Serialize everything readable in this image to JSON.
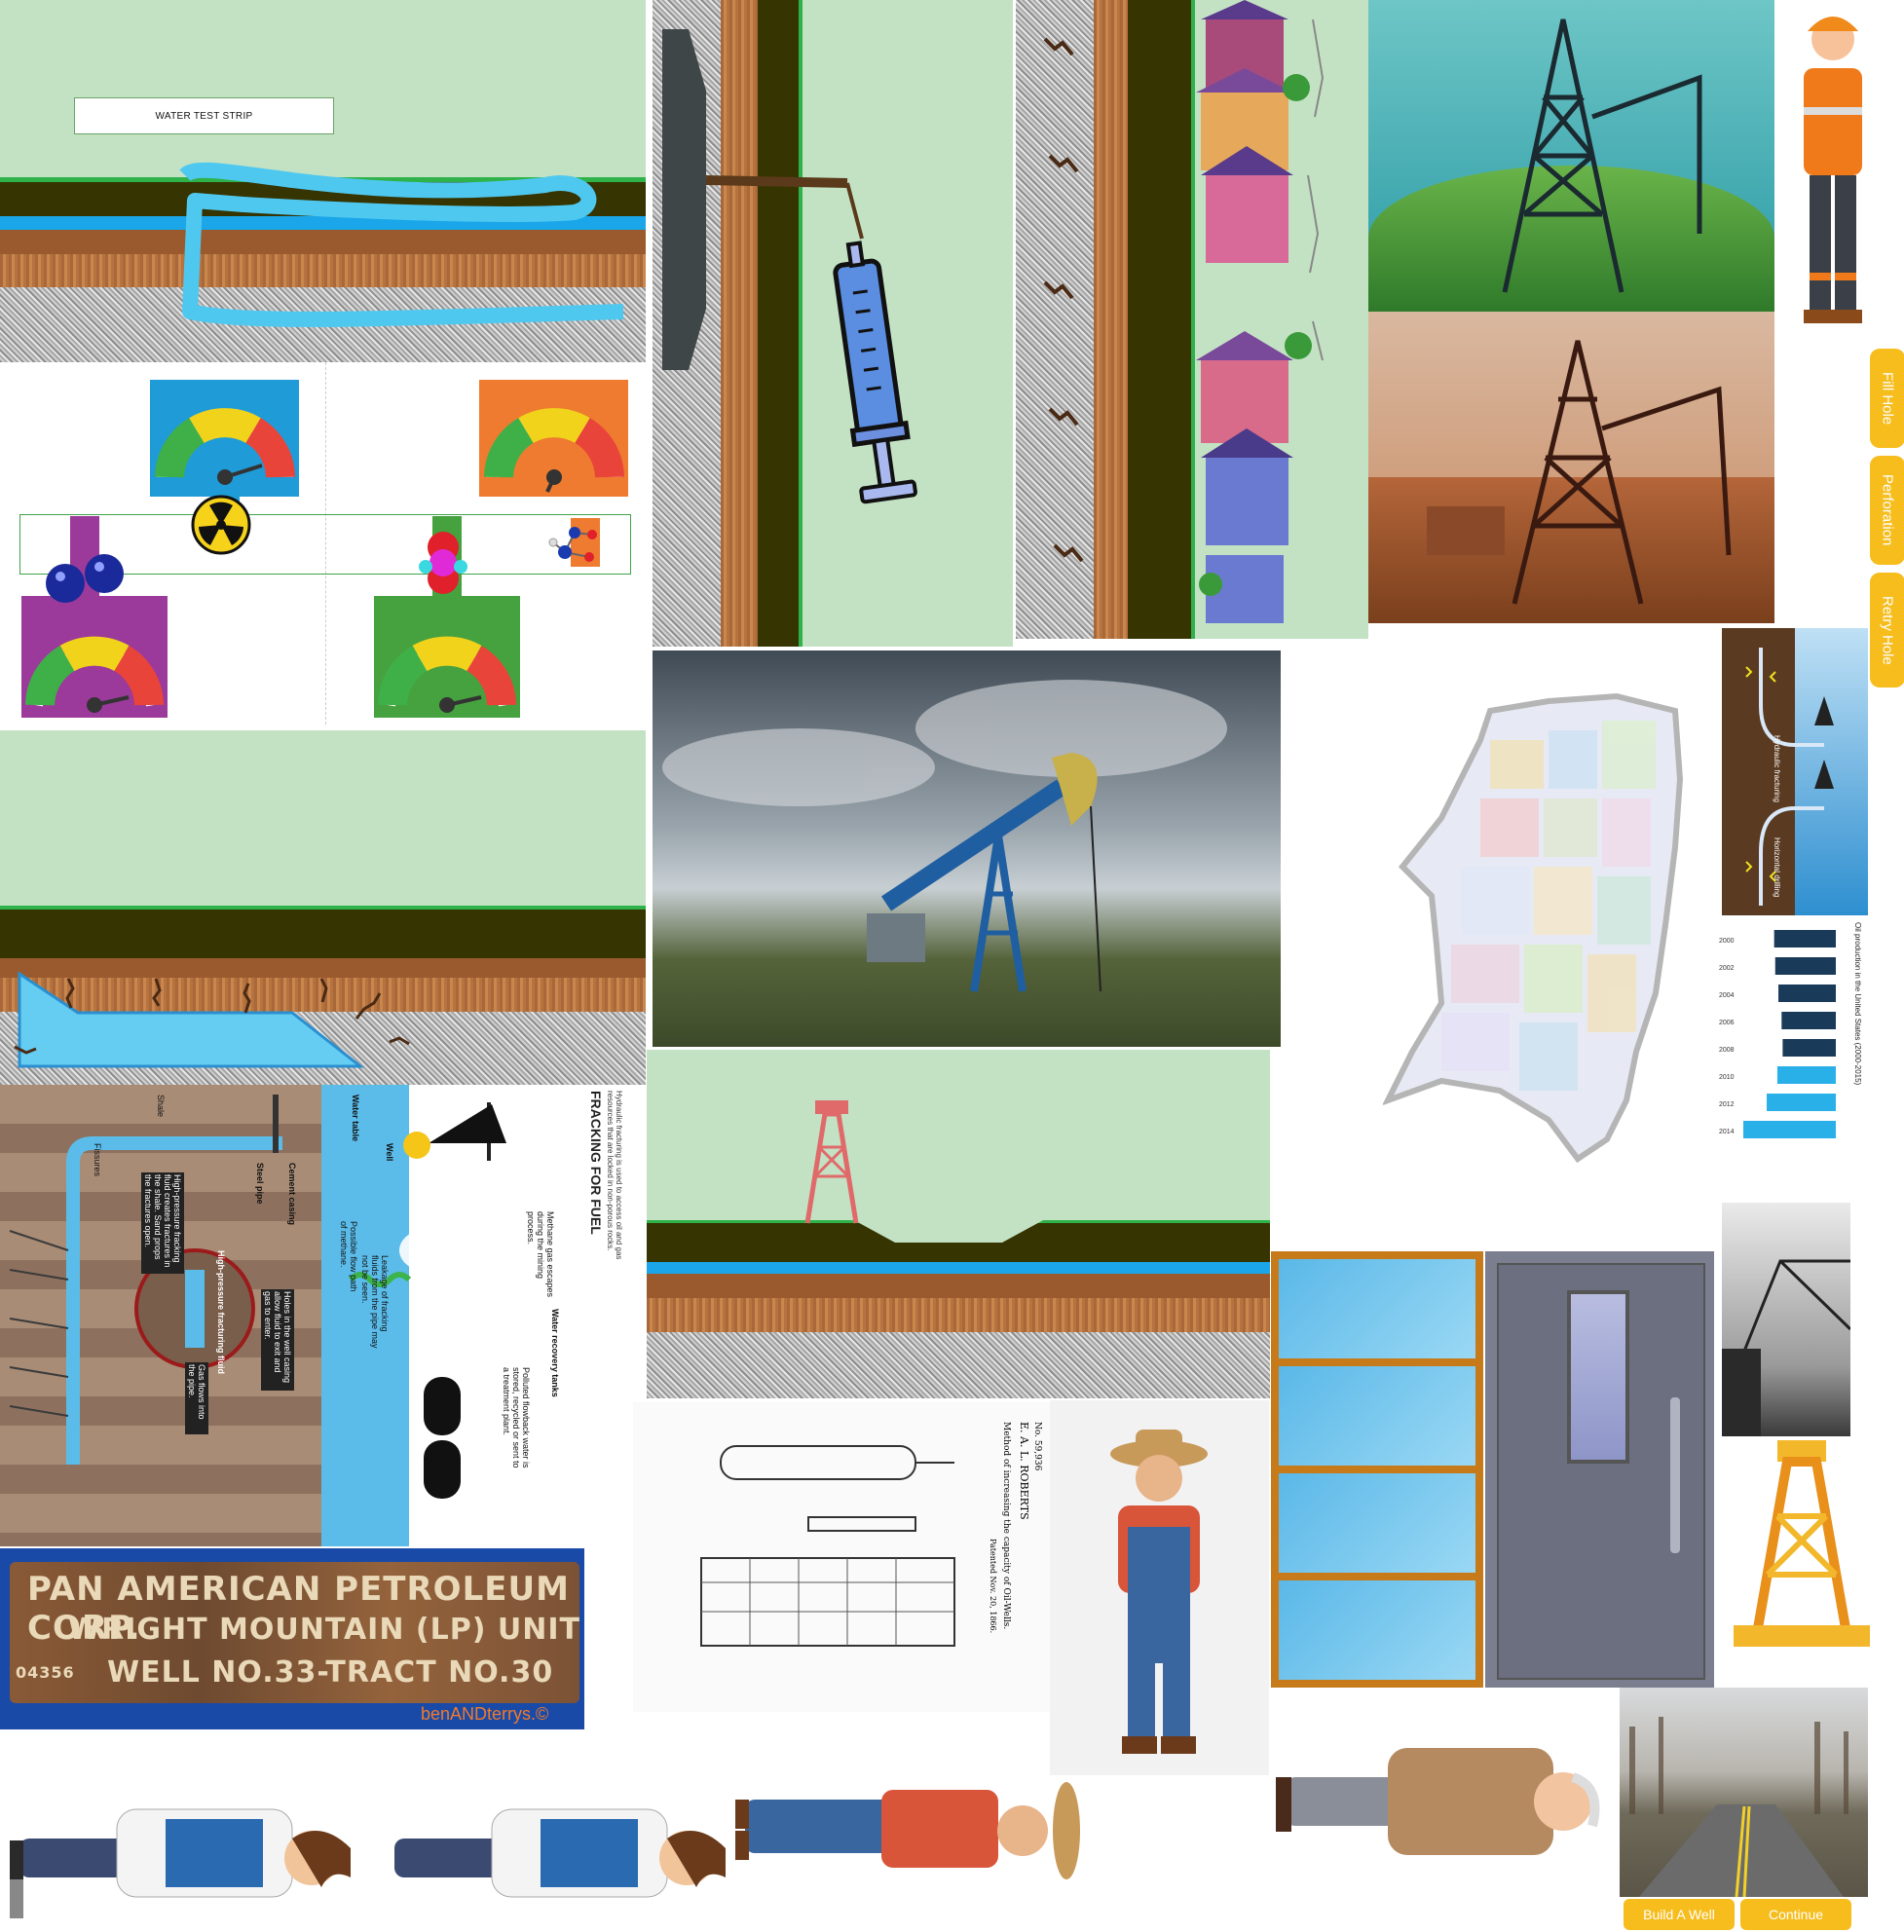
{
  "water_test": {
    "label": "WATER TEST STRIP"
  },
  "side_buttons": {
    "fill_hole": "Fill Hole",
    "perforation": "Perforation",
    "retry_hole": "Retry Hole"
  },
  "bottom_buttons": {
    "build_a_well": "Build A Well",
    "continue": "Continue"
  },
  "sign": {
    "line1": "PAN AMERICAN PETROLEUM CORP.",
    "line2": "WRIGHT MOUNTAIN (LP) UNIT",
    "line3": "WELL NO.33-TRACT NO.30",
    "left_code": "04356",
    "watermark": "benANDterrys.©"
  },
  "fracking_infographic": {
    "title": "FRACKING FOR FUEL",
    "intro": "Hydraulic fracturing is used to access oil and gas resources that are locked in non-porous rocks.",
    "labels": [
      "Shale",
      "Water table",
      "Well",
      "Cement casing",
      "Steel pipe",
      "Fissures",
      "High-pressure fracturing fluid",
      "Water recovery tanks"
    ],
    "notes": [
      "Methane gas escapes during the mining process.",
      "Possible flow path of methane.",
      "Leakage of fracking fluids from the pipe may not be seen.",
      "Holes in the well casing allow fluid to exit and gas to enter.",
      "High-pressure fracking fluid creates fractures in the shale. Sand props the fractures open.",
      "Gas flows into the pipe.",
      "Polluted flowback water is stored, recycled or sent to a treatment plant."
    ]
  },
  "patent": {
    "title": "E. A. L. ROBERTS",
    "subtitle": "Method of increasing the capacity of Oil-Wells.",
    "number": "No. 59,936",
    "patented": "Patented Nov. 20, 1866."
  },
  "mini_chart": {
    "title": "Oil production in the United States (2000-2015)",
    "type": "bar",
    "categories": [
      "2000",
      "2002",
      "2004",
      "2006",
      "2008",
      "2010",
      "2012",
      "2014"
    ],
    "values": [
      5.8,
      5.7,
      5.4,
      5.1,
      5.0,
      5.5,
      6.5,
      8.7
    ]
  },
  "diagram_small": {
    "labels": [
      "Hydraulic fracturing",
      "Horizontal drilling"
    ]
  },
  "colors": {
    "sky": "#c3e2c4",
    "button": "#f6bd1d",
    "aquifer": "#1aa6e8",
    "dark_soil": "#363400"
  }
}
